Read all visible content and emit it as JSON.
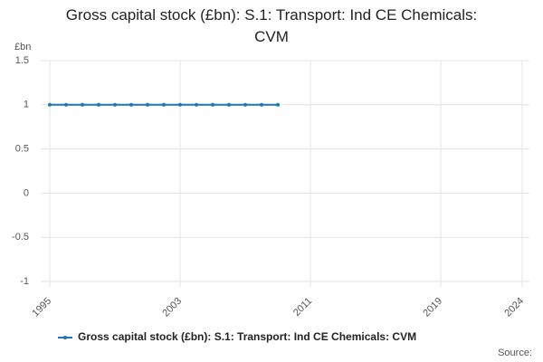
{
  "chart_data": {
    "type": "line",
    "title": "Gross capital stock (£bn): S.1: Transport: Ind CE Chemicals: CVM",
    "y_label": "£bn",
    "x": [
      1995,
      1996,
      1997,
      1998,
      1999,
      2000,
      2001,
      2002,
      2003,
      2004,
      2005,
      2006,
      2007,
      2008,
      2009
    ],
    "series": [
      {
        "name": "Gross capital stock (£bn): S.1: Transport: Ind CE Chemicals: CVM",
        "color": "#1f77b4",
        "values": [
          1,
          1,
          1,
          1,
          1,
          1,
          1,
          1,
          1,
          1,
          1,
          1,
          1,
          1,
          1
        ]
      }
    ],
    "xlim": [
      1995,
      2024
    ],
    "xticks": [
      1995,
      2003,
      2011,
      2019,
      2024
    ],
    "ylim": [
      -1,
      1.5
    ],
    "yticks": [
      -1,
      -0.5,
      0,
      0.5,
      1,
      1.5
    ],
    "grid": true,
    "legend": "bottom",
    "source": "Source:"
  }
}
